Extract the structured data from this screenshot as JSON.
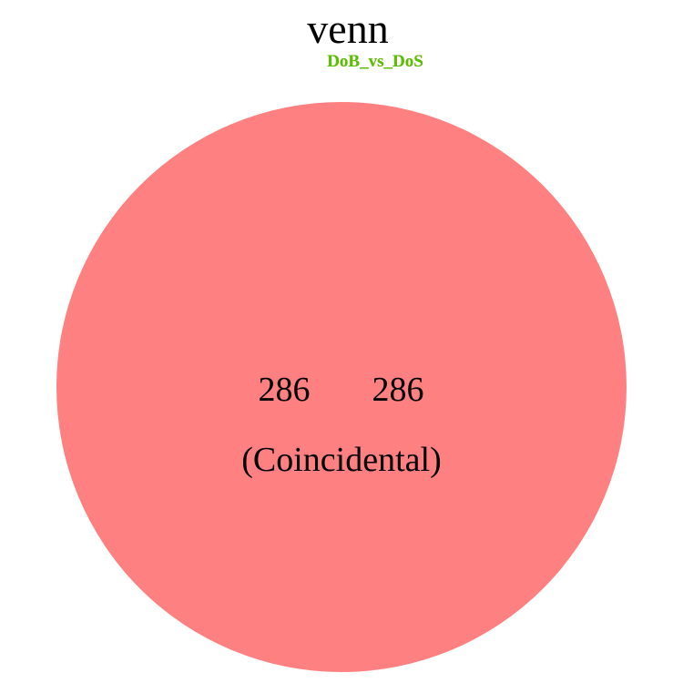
{
  "chart_data": {
    "type": "venn",
    "title": "venn",
    "sets": [
      {
        "name": "DoB_vs_DoS",
        "label_color": "#ff3300",
        "fill": "#ff8080"
      },
      {
        "name": "DoB_vs_DoS",
        "label_color": "#33dd00",
        "fill": "#80ff80"
      }
    ],
    "regions": [
      {
        "sets": [
          "A"
        ],
        "value": 286
      },
      {
        "sets": [
          "B"
        ],
        "value": 286
      }
    ],
    "annotation": "(Coincidental)",
    "fill_color": "#ff8080"
  }
}
